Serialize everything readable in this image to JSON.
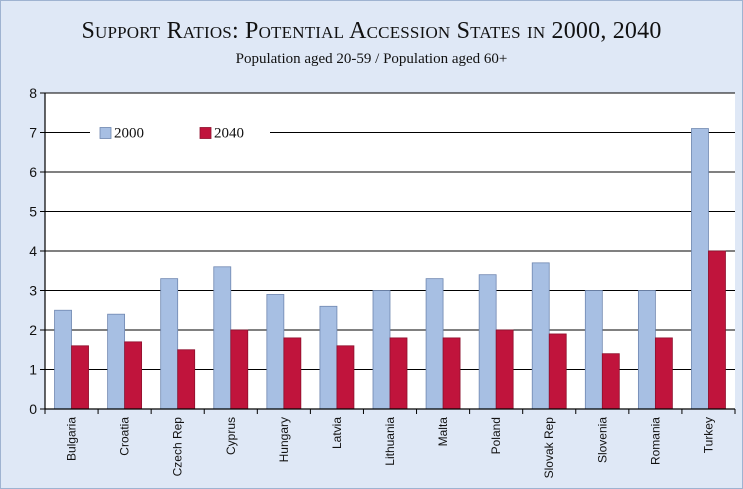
{
  "chart_data": {
    "type": "bar",
    "title": "Support Ratios: Potential Accession States in 2000, 2040",
    "subtitle": "Population aged 20-59 / Population aged 60+",
    "categories": [
      "Bulgaria",
      "Croatia",
      "Czech Rep",
      "Cyprus",
      "Hungary",
      "Latvia",
      "Lithuania",
      "Malta",
      "Poland",
      "Slovak Rep",
      "Slovenia",
      "Romania",
      "Turkey"
    ],
    "series": [
      {
        "name": "2000",
        "color": "#a7bfe3",
        "values": [
          2.5,
          2.4,
          3.3,
          3.6,
          2.9,
          2.6,
          3.0,
          3.3,
          3.4,
          3.7,
          3.0,
          3.0,
          7.1
        ]
      },
      {
        "name": "2040",
        "color": "#c0143c",
        "values": [
          1.6,
          1.7,
          1.5,
          2.0,
          1.8,
          1.6,
          1.8,
          1.8,
          2.0,
          1.9,
          1.4,
          1.8,
          4.0
        ]
      }
    ],
    "yticks": [
      0,
      1,
      2,
      3,
      4,
      5,
      6,
      7,
      8
    ],
    "ylim": [
      0,
      8
    ],
    "grid": true,
    "legend": "top-left"
  }
}
